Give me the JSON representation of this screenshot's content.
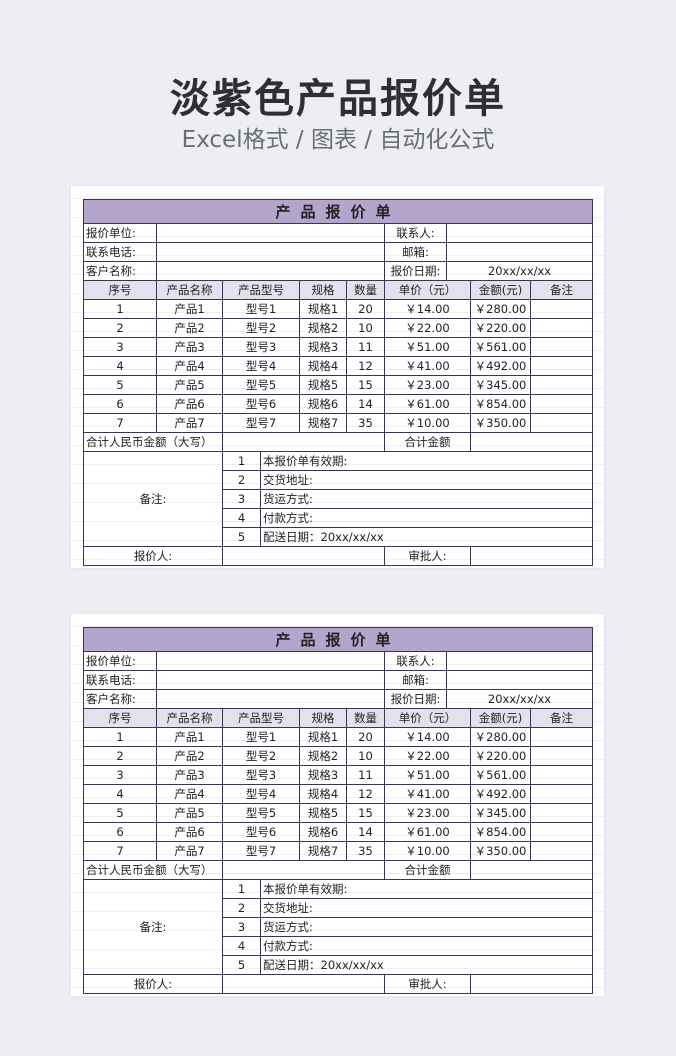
{
  "header": {
    "title": "淡紫色产品报价单",
    "subtitle": "Excel格式 / 图表 / 自动化公式"
  },
  "sheet": {
    "title": "产品报价单",
    "info": [
      {
        "label": "报价单位:",
        "label2": "联系人:",
        "value2": ""
      },
      {
        "label": "联系电话:",
        "label2": "邮箱:",
        "value2": ""
      },
      {
        "label": "客户名称:",
        "label2": "报价日期:",
        "value2": "20xx/xx/xx"
      }
    ],
    "columns": [
      "序号",
      "产品名称",
      "产品型号",
      "规格",
      "数量",
      "单价（元）",
      "金额(元)",
      "备注"
    ],
    "rows": [
      [
        "1",
        "产品1",
        "型号1",
        "规格1",
        "20",
        "￥14.00",
        "￥280.00",
        ""
      ],
      [
        "2",
        "产品2",
        "型号2",
        "规格2",
        "10",
        "￥22.00",
        "￥220.00",
        ""
      ],
      [
        "3",
        "产品3",
        "型号3",
        "规格3",
        "11",
        "￥51.00",
        "￥561.00",
        ""
      ],
      [
        "4",
        "产品4",
        "型号4",
        "规格4",
        "12",
        "￥41.00",
        "￥492.00",
        ""
      ],
      [
        "5",
        "产品5",
        "型号5",
        "规格5",
        "15",
        "￥23.00",
        "￥345.00",
        ""
      ],
      [
        "6",
        "产品6",
        "型号6",
        "规格6",
        "14",
        "￥61.00",
        "￥854.00",
        ""
      ],
      [
        "7",
        "产品7",
        "型号7",
        "规格7",
        "35",
        "￥10.00",
        "￥350.00",
        ""
      ]
    ],
    "total_label": "合计人民币金额（大写）",
    "total_amount_label": "合计金额",
    "notes_label": "备注:",
    "notes": [
      {
        "n": "1",
        "text": "本报价单有效期:"
      },
      {
        "n": "2",
        "text": "交货地址:"
      },
      {
        "n": "3",
        "text": "货运方式:"
      },
      {
        "n": "4",
        "text": "付款方式:"
      },
      {
        "n": "5",
        "text": "配送日期：20xx/xx/xx"
      }
    ],
    "quoter_label": "报价人:",
    "approver_label": "审批人:",
    "colors": {
      "title_bg": "#b3a5cc",
      "header_bg": "#e4e0ee"
    }
  }
}
